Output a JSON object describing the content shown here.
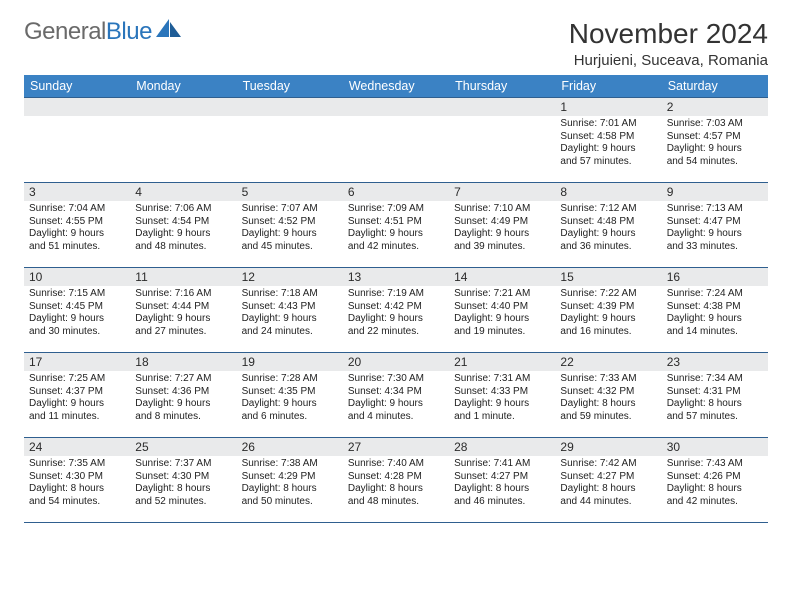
{
  "logo": {
    "text_gray": "General",
    "text_blue": "Blue"
  },
  "title": "November 2024",
  "location": "Hurjuieni, Suceava, Romania",
  "colors": {
    "header_bg": "#3b82c4",
    "header_text": "#ffffff",
    "daynum_bg": "#e9eaeb",
    "row_border": "#2f5f8f",
    "logo_gray": "#6a6a6a",
    "logo_blue": "#2a75bb",
    "text": "#222222",
    "page_bg": "#ffffff"
  },
  "fonts": {
    "title_size_pt": 21,
    "location_size_pt": 11,
    "dow_size_pt": 9.5,
    "daynum_size_pt": 9,
    "body_size_pt": 7.5
  },
  "days_of_week": [
    "Sunday",
    "Monday",
    "Tuesday",
    "Wednesday",
    "Thursday",
    "Friday",
    "Saturday"
  ],
  "weeks": [
    [
      {
        "num": "",
        "lines": []
      },
      {
        "num": "",
        "lines": []
      },
      {
        "num": "",
        "lines": []
      },
      {
        "num": "",
        "lines": []
      },
      {
        "num": "",
        "lines": []
      },
      {
        "num": "1",
        "lines": [
          "Sunrise: 7:01 AM",
          "Sunset: 4:58 PM",
          "Daylight: 9 hours",
          "and 57 minutes."
        ]
      },
      {
        "num": "2",
        "lines": [
          "Sunrise: 7:03 AM",
          "Sunset: 4:57 PM",
          "Daylight: 9 hours",
          "and 54 minutes."
        ]
      }
    ],
    [
      {
        "num": "3",
        "lines": [
          "Sunrise: 7:04 AM",
          "Sunset: 4:55 PM",
          "Daylight: 9 hours",
          "and 51 minutes."
        ]
      },
      {
        "num": "4",
        "lines": [
          "Sunrise: 7:06 AM",
          "Sunset: 4:54 PM",
          "Daylight: 9 hours",
          "and 48 minutes."
        ]
      },
      {
        "num": "5",
        "lines": [
          "Sunrise: 7:07 AM",
          "Sunset: 4:52 PM",
          "Daylight: 9 hours",
          "and 45 minutes."
        ]
      },
      {
        "num": "6",
        "lines": [
          "Sunrise: 7:09 AM",
          "Sunset: 4:51 PM",
          "Daylight: 9 hours",
          "and 42 minutes."
        ]
      },
      {
        "num": "7",
        "lines": [
          "Sunrise: 7:10 AM",
          "Sunset: 4:49 PM",
          "Daylight: 9 hours",
          "and 39 minutes."
        ]
      },
      {
        "num": "8",
        "lines": [
          "Sunrise: 7:12 AM",
          "Sunset: 4:48 PM",
          "Daylight: 9 hours",
          "and 36 minutes."
        ]
      },
      {
        "num": "9",
        "lines": [
          "Sunrise: 7:13 AM",
          "Sunset: 4:47 PM",
          "Daylight: 9 hours",
          "and 33 minutes."
        ]
      }
    ],
    [
      {
        "num": "10",
        "lines": [
          "Sunrise: 7:15 AM",
          "Sunset: 4:45 PM",
          "Daylight: 9 hours",
          "and 30 minutes."
        ]
      },
      {
        "num": "11",
        "lines": [
          "Sunrise: 7:16 AM",
          "Sunset: 4:44 PM",
          "Daylight: 9 hours",
          "and 27 minutes."
        ]
      },
      {
        "num": "12",
        "lines": [
          "Sunrise: 7:18 AM",
          "Sunset: 4:43 PM",
          "Daylight: 9 hours",
          "and 24 minutes."
        ]
      },
      {
        "num": "13",
        "lines": [
          "Sunrise: 7:19 AM",
          "Sunset: 4:42 PM",
          "Daylight: 9 hours",
          "and 22 minutes."
        ]
      },
      {
        "num": "14",
        "lines": [
          "Sunrise: 7:21 AM",
          "Sunset: 4:40 PM",
          "Daylight: 9 hours",
          "and 19 minutes."
        ]
      },
      {
        "num": "15",
        "lines": [
          "Sunrise: 7:22 AM",
          "Sunset: 4:39 PM",
          "Daylight: 9 hours",
          "and 16 minutes."
        ]
      },
      {
        "num": "16",
        "lines": [
          "Sunrise: 7:24 AM",
          "Sunset: 4:38 PM",
          "Daylight: 9 hours",
          "and 14 minutes."
        ]
      }
    ],
    [
      {
        "num": "17",
        "lines": [
          "Sunrise: 7:25 AM",
          "Sunset: 4:37 PM",
          "Daylight: 9 hours",
          "and 11 minutes."
        ]
      },
      {
        "num": "18",
        "lines": [
          "Sunrise: 7:27 AM",
          "Sunset: 4:36 PM",
          "Daylight: 9 hours",
          "and 8 minutes."
        ]
      },
      {
        "num": "19",
        "lines": [
          "Sunrise: 7:28 AM",
          "Sunset: 4:35 PM",
          "Daylight: 9 hours",
          "and 6 minutes."
        ]
      },
      {
        "num": "20",
        "lines": [
          "Sunrise: 7:30 AM",
          "Sunset: 4:34 PM",
          "Daylight: 9 hours",
          "and 4 minutes."
        ]
      },
      {
        "num": "21",
        "lines": [
          "Sunrise: 7:31 AM",
          "Sunset: 4:33 PM",
          "Daylight: 9 hours",
          "and 1 minute."
        ]
      },
      {
        "num": "22",
        "lines": [
          "Sunrise: 7:33 AM",
          "Sunset: 4:32 PM",
          "Daylight: 8 hours",
          "and 59 minutes."
        ]
      },
      {
        "num": "23",
        "lines": [
          "Sunrise: 7:34 AM",
          "Sunset: 4:31 PM",
          "Daylight: 8 hours",
          "and 57 minutes."
        ]
      }
    ],
    [
      {
        "num": "24",
        "lines": [
          "Sunrise: 7:35 AM",
          "Sunset: 4:30 PM",
          "Daylight: 8 hours",
          "and 54 minutes."
        ]
      },
      {
        "num": "25",
        "lines": [
          "Sunrise: 7:37 AM",
          "Sunset: 4:30 PM",
          "Daylight: 8 hours",
          "and 52 minutes."
        ]
      },
      {
        "num": "26",
        "lines": [
          "Sunrise: 7:38 AM",
          "Sunset: 4:29 PM",
          "Daylight: 8 hours",
          "and 50 minutes."
        ]
      },
      {
        "num": "27",
        "lines": [
          "Sunrise: 7:40 AM",
          "Sunset: 4:28 PM",
          "Daylight: 8 hours",
          "and 48 minutes."
        ]
      },
      {
        "num": "28",
        "lines": [
          "Sunrise: 7:41 AM",
          "Sunset: 4:27 PM",
          "Daylight: 8 hours",
          "and 46 minutes."
        ]
      },
      {
        "num": "29",
        "lines": [
          "Sunrise: 7:42 AM",
          "Sunset: 4:27 PM",
          "Daylight: 8 hours",
          "and 44 minutes."
        ]
      },
      {
        "num": "30",
        "lines": [
          "Sunrise: 7:43 AM",
          "Sunset: 4:26 PM",
          "Daylight: 8 hours",
          "and 42 minutes."
        ]
      }
    ]
  ]
}
